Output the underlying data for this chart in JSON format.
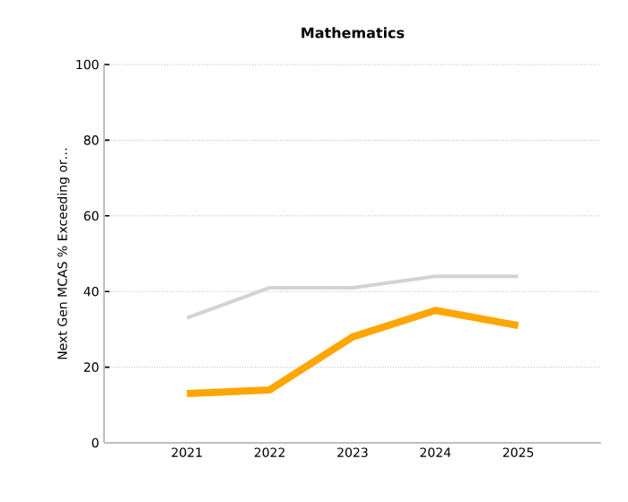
{
  "chart_data": {
    "type": "line",
    "title": "Mathematics",
    "ylabel": "Next Gen MCAS % Exceeding or…",
    "categories": [
      "2021",
      "2022",
      "2023",
      "2024",
      "2025"
    ],
    "series": [
      {
        "color": "#d3d3d3",
        "values": [
          33,
          41,
          41,
          44,
          44
        ]
      },
      {
        "color": "#ffa500",
        "values": [
          13,
          14,
          28,
          35,
          31
        ]
      }
    ],
    "ylim": [
      0,
      100
    ],
    "yticks": [
      0,
      20,
      40,
      60,
      80,
      100
    ],
    "grid": "y",
    "marker": "none",
    "line_style": "solid"
  }
}
